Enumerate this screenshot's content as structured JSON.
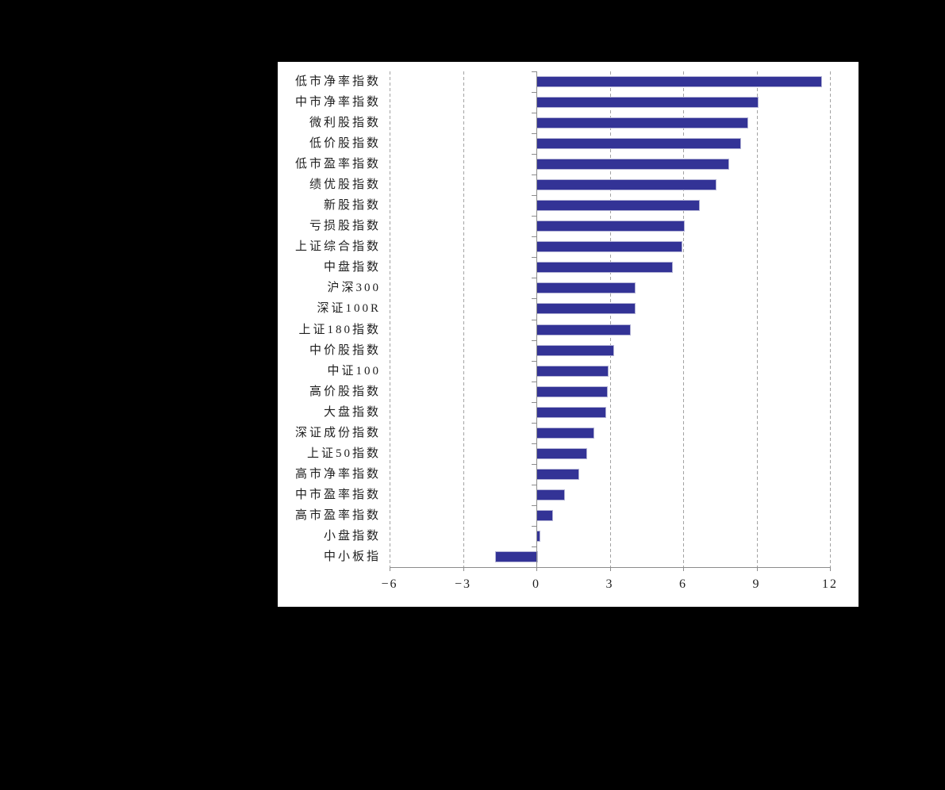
{
  "window": {
    "background_color": "#000000",
    "figure_background_color": "#ffffff"
  },
  "chart_data": {
    "type": "bar",
    "orientation": "horizontal",
    "title": "",
    "xlabel": "",
    "ylabel": "",
    "categories": [
      "低市净率指数",
      "中市净率指数",
      "微利股指数",
      "低价股指数",
      "低市盈率指数",
      "绩优股指数",
      "新股指数",
      "亏损股指数",
      "上证综合指数",
      "中盘指数",
      "沪深300",
      "深证100R",
      "上证180指数",
      "中价股指数",
      "中证100",
      "高价股指数",
      "大盘指数",
      "深证成份指数",
      "上证50指数",
      "高市净率指数",
      "中市盈率指数",
      "高市盈率指数",
      "小盘指数",
      "中小板指"
    ],
    "values": [
      11.6,
      9.0,
      8.6,
      8.3,
      7.8,
      7.3,
      6.6,
      6.0,
      5.9,
      5.5,
      4.0,
      4.0,
      3.8,
      3.1,
      2.9,
      2.85,
      2.8,
      2.3,
      2.0,
      1.7,
      1.1,
      0.6,
      0.1,
      -1.7
    ],
    "xlim": [
      -6,
      12
    ],
    "x_ticks": [
      -6,
      -3,
      0,
      3,
      6,
      9,
      12
    ],
    "x_tick_labels": [
      "−6",
      "−3",
      "0",
      "3",
      "6",
      "9",
      "12"
    ],
    "legend": "none",
    "grid": "vertical dashed gridlines at ticks except zero; solid axis at 0",
    "colors": {
      "bar_fill": "#333396",
      "bar_border": "#b4b4d6",
      "gridline": "#a3a3a3",
      "axis": "#8c8c8c",
      "text": "#1f1f1f"
    }
  }
}
